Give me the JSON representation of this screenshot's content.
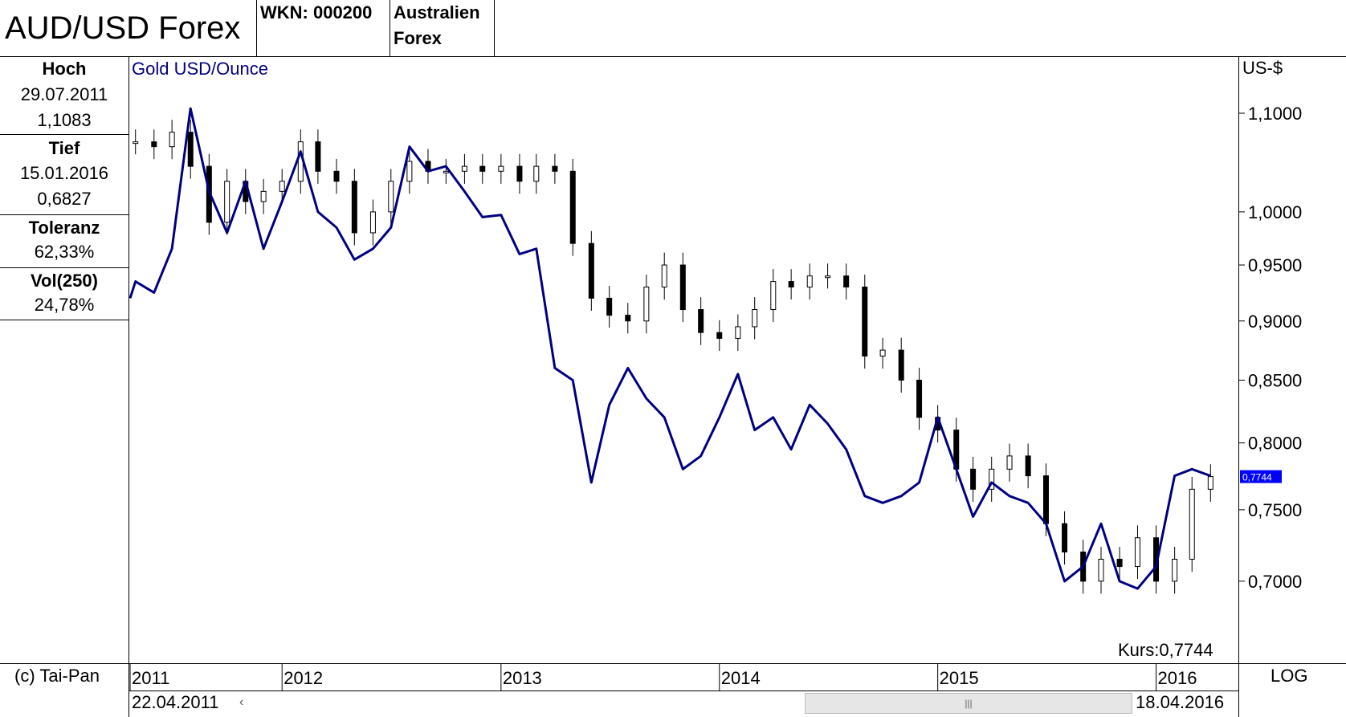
{
  "header": {
    "title": "AUD/USD Forex",
    "wkn": "WKN: 000200",
    "name_line1": "Australien",
    "name_line2": "Forex"
  },
  "stats": {
    "hoch_label": "Hoch",
    "hoch_date": "29.07.2011",
    "hoch_value": "1,1083",
    "tief_label": "Tief",
    "tief_date": "15.01.2016",
    "tief_value": "0,6827",
    "toleranz_label": "Toleranz",
    "toleranz_value": "62,33%",
    "vol_label": "Vol(250)",
    "vol_value": "24,78%"
  },
  "footer": {
    "copyright": "(c) Tai-Pan",
    "start_date": "22.04.2011",
    "end_date": "18.04.2016",
    "scale_mode": "LOG",
    "scroll_left_glyph": "‹",
    "scroll_thumb_glyph": "|||"
  },
  "chart_data": {
    "type": "line",
    "scale": "log",
    "currency_label": "US-$",
    "overlay_label": "Gold USD/Ounce",
    "current_label": "Kurs:0,7744",
    "current_value": 0.7744,
    "current_value_text": "0,7744",
    "y_ticks": [
      1.1,
      1.0,
      0.95,
      0.9,
      0.85,
      0.8,
      0.75,
      0.7
    ],
    "y_tick_labels": [
      "1,1000",
      "1,0000",
      "0,9500",
      "0,9000",
      "0,8500",
      "0,8000",
      "0,7500",
      "0,7000"
    ],
    "ylim": [
      0.665,
      1.125
    ],
    "x_ticks": [
      "2011",
      "2012",
      "2013",
      "2014",
      "2015",
      "2016"
    ],
    "x_tick_dates": [
      "2011-01-01",
      "2012-01-01",
      "2013-01-01",
      "2014-01-01",
      "2015-01-01",
      "2016-01-01"
    ],
    "xlim": [
      "2011-04-22",
      "2016-04-18"
    ],
    "series": [
      {
        "kind": "candlestick",
        "dates": [
          "2011-05-01",
          "2011-06-01",
          "2011-07-01",
          "2011-08-01",
          "2011-09-01",
          "2011-10-01",
          "2011-11-01",
          "2011-12-01",
          "2012-01-01",
          "2012-02-01",
          "2012-03-01",
          "2012-04-01",
          "2012-05-01",
          "2012-06-01",
          "2012-07-01",
          "2012-08-01",
          "2012-09-01",
          "2012-10-01",
          "2012-11-01",
          "2012-12-01",
          "2013-01-01",
          "2013-02-01",
          "2013-03-01",
          "2013-04-01",
          "2013-05-01",
          "2013-06-01",
          "2013-07-01",
          "2013-08-01",
          "2013-09-01",
          "2013-10-01",
          "2013-11-01",
          "2013-12-01",
          "2014-01-01",
          "2014-02-01",
          "2014-03-01",
          "2014-04-01",
          "2014-05-01",
          "2014-06-01",
          "2014-07-01",
          "2014-08-01",
          "2014-09-01",
          "2014-10-01",
          "2014-11-01",
          "2014-12-01",
          "2015-01-01",
          "2015-02-01",
          "2015-03-01",
          "2015-04-01",
          "2015-05-01",
          "2015-06-01",
          "2015-07-01",
          "2015-08-01",
          "2015-09-01",
          "2015-10-01",
          "2015-11-01",
          "2015-12-01",
          "2016-01-01",
          "2016-02-01",
          "2016-03-01",
          "2016-04-01"
        ],
        "values": [
          1.07,
          1.065,
          1.08,
          1.045,
          0.99,
          1.03,
          1.01,
          1.02,
          1.03,
          1.07,
          1.04,
          1.03,
          0.98,
          1.0,
          1.03,
          1.05,
          1.04,
          1.04,
          1.045,
          1.04,
          1.045,
          1.03,
          1.045,
          1.04,
          0.97,
          0.92,
          0.905,
          0.9,
          0.93,
          0.95,
          0.91,
          0.89,
          0.885,
          0.895,
          0.91,
          0.935,
          0.93,
          0.94,
          0.94,
          0.93,
          0.87,
          0.875,
          0.85,
          0.82,
          0.81,
          0.78,
          0.765,
          0.78,
          0.79,
          0.775,
          0.74,
          0.72,
          0.7,
          0.715,
          0.71,
          0.73,
          0.7,
          0.715,
          0.765,
          0.7744
        ]
      },
      {
        "kind": "line",
        "name": "Gold USD/Ounce",
        "color": "#000080",
        "dates": [
          "2011-04-22",
          "2011-05-01",
          "2011-06-01",
          "2011-07-01",
          "2011-08-01",
          "2011-09-01",
          "2011-10-01",
          "2011-11-01",
          "2011-12-01",
          "2012-01-01",
          "2012-02-01",
          "2012-03-01",
          "2012-04-01",
          "2012-05-01",
          "2012-06-01",
          "2012-07-01",
          "2012-08-01",
          "2012-09-01",
          "2012-10-01",
          "2012-11-01",
          "2012-12-01",
          "2013-01-01",
          "2013-02-01",
          "2013-03-01",
          "2013-04-01",
          "2013-05-01",
          "2013-06-01",
          "2013-07-01",
          "2013-08-01",
          "2013-09-01",
          "2013-10-01",
          "2013-11-01",
          "2013-12-01",
          "2014-01-01",
          "2014-02-01",
          "2014-03-01",
          "2014-04-01",
          "2014-05-01",
          "2014-06-01",
          "2014-07-01",
          "2014-08-01",
          "2014-09-01",
          "2014-10-01",
          "2014-11-01",
          "2014-12-01",
          "2015-01-01",
          "2015-02-01",
          "2015-03-01",
          "2015-04-01",
          "2015-05-01",
          "2015-06-01",
          "2015-07-01",
          "2015-08-01",
          "2015-09-01",
          "2015-10-01",
          "2015-11-01",
          "2015-12-01",
          "2016-01-01",
          "2016-02-01",
          "2016-03-01",
          "2016-04-01"
        ],
        "values": [
          0.92,
          0.935,
          0.925,
          0.965,
          1.105,
          1.02,
          0.98,
          1.03,
          0.965,
          1.01,
          1.06,
          1.0,
          0.985,
          0.955,
          0.965,
          0.985,
          1.065,
          1.04,
          1.045,
          1.02,
          0.995,
          0.997,
          0.96,
          0.965,
          0.86,
          0.85,
          0.77,
          0.83,
          0.86,
          0.835,
          0.82,
          0.78,
          0.79,
          0.82,
          0.855,
          0.81,
          0.82,
          0.795,
          0.83,
          0.815,
          0.795,
          0.76,
          0.755,
          0.76,
          0.77,
          0.82,
          0.78,
          0.745,
          0.77,
          0.76,
          0.755,
          0.74,
          0.7,
          0.71,
          0.74,
          0.7,
          0.695,
          0.71,
          0.775,
          0.78,
          0.775
        ]
      }
    ]
  }
}
